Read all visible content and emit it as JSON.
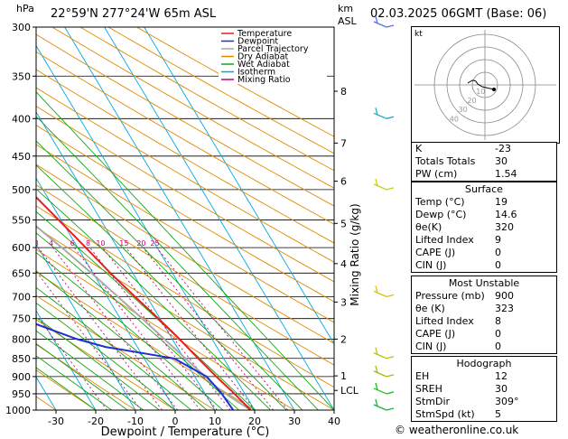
{
  "header": {
    "hpa": "hPa",
    "location": "22°59'N  277°24'W  65m  ASL",
    "km": "km",
    "asl": "ASL",
    "datetime": "02.03.2025  06GMT  (Base: 06)"
  },
  "chart_data": {
    "type": "line",
    "title": "",
    "xlabel": "Dewpoint / Temperature (°C)",
    "ylabel": "hPa",
    "y2label": "Mixing Ratio (g/kg)",
    "xlim": [
      -35,
      40
    ],
    "ylim": [
      300,
      1000
    ],
    "pressure_ticks": [
      300,
      350,
      400,
      450,
      500,
      550,
      600,
      650,
      700,
      750,
      800,
      850,
      900,
      950,
      1000
    ],
    "temp_ticks": [
      -30,
      -20,
      -10,
      0,
      10,
      20,
      30,
      40
    ],
    "km_ticks": [
      {
        "label": "8",
        "p": 367
      },
      {
        "label": "7",
        "p": 432
      },
      {
        "label": "6",
        "p": 487
      },
      {
        "label": "5",
        "p": 556
      },
      {
        "label": "4",
        "p": 631
      },
      {
        "label": "3",
        "p": 712
      },
      {
        "label": "2",
        "p": 800
      },
      {
        "label": "1",
        "p": 898
      },
      {
        "label": "LCL",
        "p": 940
      }
    ],
    "mixing_ratio_labels": [
      "1",
      "2",
      "3",
      "4",
      "6",
      "8",
      "10",
      "15",
      "20",
      "25"
    ],
    "legend": [
      {
        "name": "Temperature",
        "color": "#e52020"
      },
      {
        "name": "Dewpoint",
        "color": "#1e2fd6"
      },
      {
        "name": "Parcel Trajectory",
        "color": "#a9a9a9"
      },
      {
        "name": "Dry Adiabat",
        "color": "#e08a00"
      },
      {
        "name": "Wet Adiabat",
        "color": "#13a813"
      },
      {
        "name": "Isotherm",
        "color": "#00a8e0"
      },
      {
        "name": "Mixing Ratio",
        "color": "#c8007c"
      }
    ],
    "temperature": {
      "p": [
        1000,
        950,
        900,
        850,
        800,
        750,
        700,
        650,
        600,
        550,
        500,
        450,
        400,
        350,
        300
      ],
      "t": [
        19,
        17.4,
        15.4,
        13.6,
        11.8,
        9.6,
        7,
        4.4,
        2,
        -0.6,
        -3.6,
        -7.6,
        -13.6,
        -21.6,
        -30.6
      ]
    },
    "dewpoint": {
      "p": [
        1000,
        950,
        900,
        850,
        820,
        800,
        750,
        700,
        650,
        600,
        550,
        500,
        450,
        400,
        350,
        300
      ],
      "t": [
        14.6,
        14.2,
        13,
        7.5,
        -8,
        -14,
        -25,
        -29,
        -32,
        -40,
        -50,
        -58,
        -54,
        -42,
        -40.5,
        -48
      ]
    },
    "parcel": {
      "p": [
        1000,
        950,
        940,
        900,
        850,
        800,
        750,
        700,
        650,
        600,
        550,
        500,
        450,
        400,
        350,
        300
      ],
      "t": [
        19,
        15.2,
        14.3,
        12.6,
        10.4,
        8,
        5.5,
        2.7,
        -0.4,
        -4,
        -8.2,
        -13.2,
        -19.2,
        -26.5,
        -35.5,
        -46.5
      ]
    },
    "wind_barbs": [
      {
        "p": 300,
        "color": "#5a6ef0"
      },
      {
        "p": 400,
        "color": "#20b0c0"
      },
      {
        "p": 500,
        "color": "#c8d010"
      },
      {
        "p": 700,
        "color": "#e0c000"
      },
      {
        "p": 850,
        "color": "#c0c000"
      },
      {
        "p": 900,
        "color": "#a0c000"
      },
      {
        "p": 950,
        "color": "#20c020"
      },
      {
        "p": 1000,
        "color": "#20b040"
      }
    ]
  },
  "hodograph": {
    "unit_label": "kt",
    "ring_labels": [
      "10",
      "20",
      "30",
      "40"
    ]
  },
  "indices": {
    "rows": [
      {
        "label": "K",
        "value": "-23"
      },
      {
        "label": "Totals Totals",
        "value": "30"
      },
      {
        "label": "PW (cm)",
        "value": "1.54"
      }
    ]
  },
  "surface": {
    "title": "Surface",
    "rows": [
      {
        "label": "Temp (°C)",
        "value": "19"
      },
      {
        "label": "Dewp (°C)",
        "value": "14.6"
      },
      {
        "label": "θe(K)",
        "value": "320"
      },
      {
        "label": "Lifted Index",
        "value": "9"
      },
      {
        "label": "CAPE (J)",
        "value": "0"
      },
      {
        "label": "CIN (J)",
        "value": "0"
      }
    ]
  },
  "most_unstable": {
    "title": "Most Unstable",
    "rows": [
      {
        "label": "Pressure (mb)",
        "value": "900"
      },
      {
        "label": "θe (K)",
        "value": "323"
      },
      {
        "label": "Lifted Index",
        "value": "8"
      },
      {
        "label": "CAPE (J)",
        "value": "0"
      },
      {
        "label": "CIN (J)",
        "value": "0"
      }
    ]
  },
  "hodograph_table": {
    "title": "Hodograph",
    "rows": [
      {
        "label": "EH",
        "value": "12"
      },
      {
        "label": "SREH",
        "value": "30"
      },
      {
        "label": "StmDir",
        "value": "309°"
      },
      {
        "label": "StmSpd (kt)",
        "value": "5"
      }
    ]
  },
  "footer": {
    "copyright": "© weatheronline.co.uk"
  }
}
